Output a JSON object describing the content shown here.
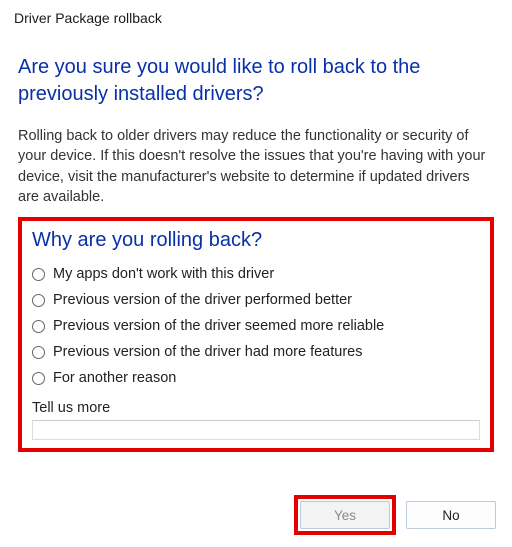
{
  "window": {
    "title": "Driver Package rollback"
  },
  "headline": "Are you sure you would like to roll back to the previously installed drivers?",
  "body": "Rolling back to older drivers may reduce the functionality or security of your device. If this doesn't resolve the issues that you're having with your device, visit the manufacturer's website to determine if updated drivers are available.",
  "reason": {
    "heading": "Why are you rolling back?",
    "options": [
      "My apps don't work with this driver",
      "Previous version of the driver performed better",
      "Previous version of the driver seemed more reliable",
      "Previous version of the driver had more features",
      "For another reason"
    ],
    "tell_us_label": "Tell us more",
    "tell_us_value": ""
  },
  "buttons": {
    "yes": "Yes",
    "no": "No"
  },
  "colors": {
    "accent": "#0830a8",
    "highlight": "#e30000",
    "btn_border": "#bfcadd"
  }
}
